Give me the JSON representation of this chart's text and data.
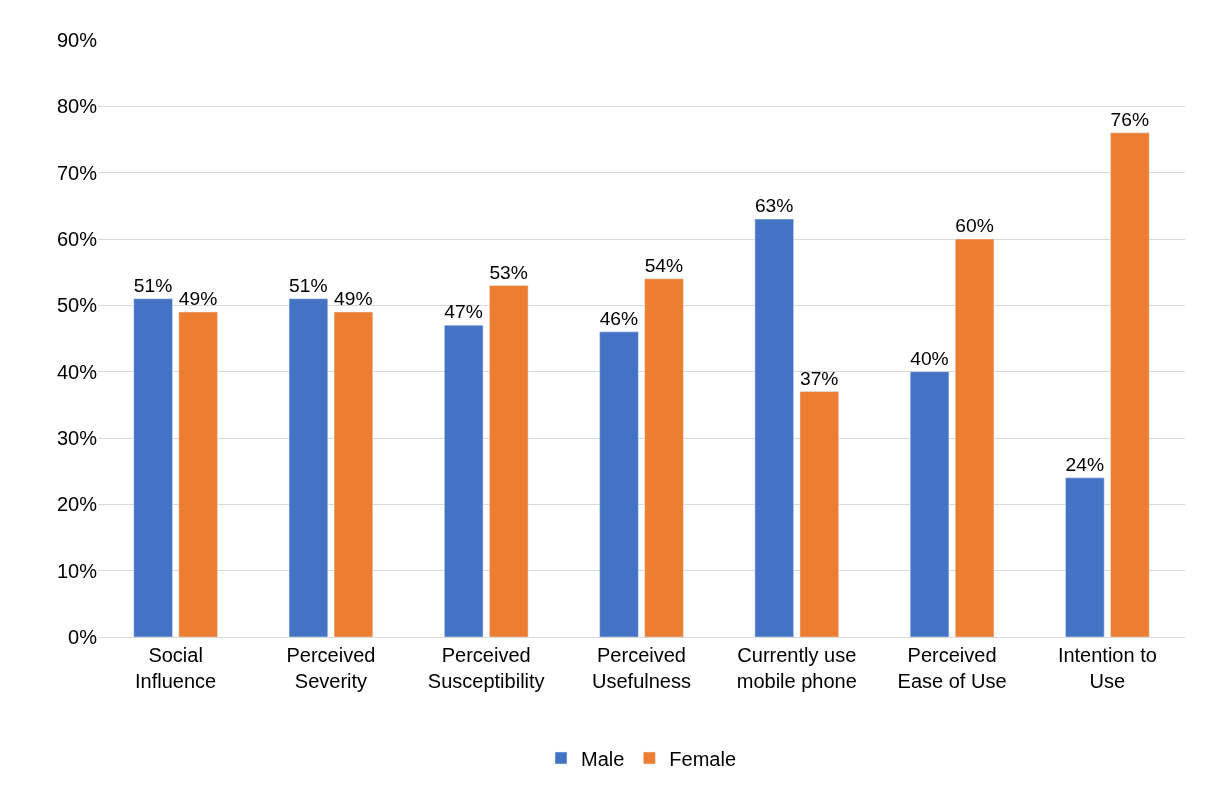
{
  "chart_data": {
    "type": "bar",
    "categories": [
      "Social\nInfluence",
      "Perceived\nSeverity",
      "Perceived\nSusceptibility",
      "Perceived\nUsefulness",
      "Currently use\nmobile phone",
      "Perceived\nEase of Use",
      "Intention to\nUse"
    ],
    "series": [
      {
        "name": "Male",
        "color": "#4472c4",
        "values": [
          51,
          51,
          47,
          46,
          63,
          40,
          24
        ],
        "value_labels": [
          "51%",
          "51%",
          "47%",
          "46%",
          "63%",
          "40%",
          "24%"
        ]
      },
      {
        "name": "Female",
        "color": "#ed7d31",
        "values": [
          49,
          49,
          53,
          54,
          37,
          60,
          76
        ],
        "value_labels": [
          "49%",
          "49%",
          "53%",
          "54%",
          "37%",
          "60%",
          "76%"
        ]
      }
    ],
    "ylim": [
      0,
      90
    ],
    "yticks": [
      {
        "value": 0,
        "label": "0%"
      },
      {
        "value": 10,
        "label": "10%"
      },
      {
        "value": 20,
        "label": "20%"
      },
      {
        "value": 30,
        "label": "30%"
      },
      {
        "value": 40,
        "label": "40%"
      },
      {
        "value": 50,
        "label": "50%"
      },
      {
        "value": 60,
        "label": "60%"
      },
      {
        "value": 70,
        "label": "70%"
      },
      {
        "value": 80,
        "label": "80%"
      },
      {
        "value": 90,
        "label": "90%"
      }
    ],
    "grid": "y",
    "legend": "bottom"
  }
}
